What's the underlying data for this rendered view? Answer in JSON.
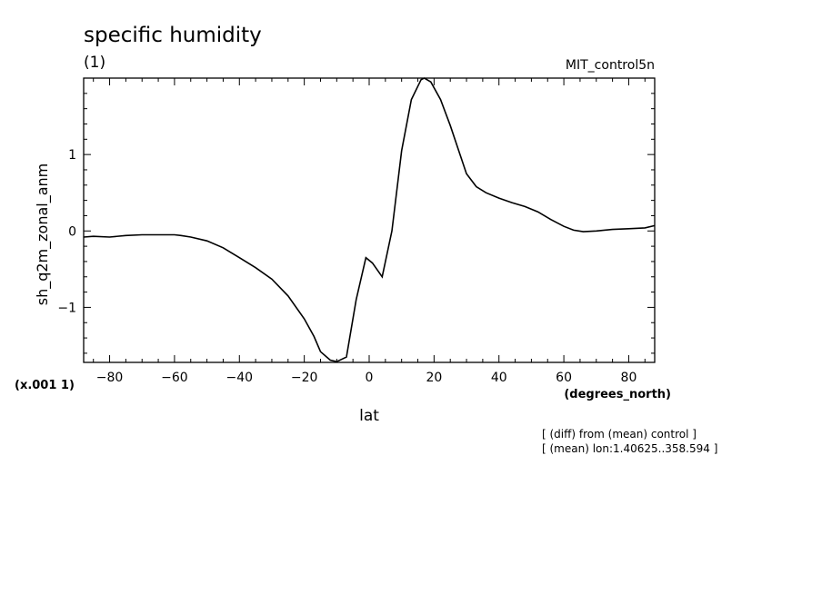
{
  "header": {
    "title": "specific humidity",
    "subtitle": "(1)",
    "run_label": "MIT_control5n"
  },
  "footer": {
    "scale_note": "(x.001 1)",
    "x_units": "(degrees_north)",
    "note_line1": "[ (diff) from (mean) control ]",
    "note_line2": "[ (mean) lon:1.40625..358.594 ]"
  },
  "chart_data": {
    "type": "line",
    "title": "specific humidity",
    "xlabel": "lat",
    "ylabel": "sh_q2m_zonal_anm",
    "xlim": [
      -88,
      88
    ],
    "ylim": [
      -1.72,
      2.0
    ],
    "xticks": [
      -80,
      -60,
      -40,
      -20,
      0,
      20,
      40,
      60,
      80
    ],
    "yticks": [
      -1,
      0,
      1
    ],
    "grid": false,
    "series": [
      {
        "x": [
          -88,
          -85,
          -80,
          -75,
          -70,
          -65,
          -60,
          -58,
          -55,
          -50,
          -45,
          -40,
          -35,
          -30,
          -25,
          -20,
          -17,
          -15,
          -12,
          -10,
          -7,
          -4,
          -1,
          1,
          4,
          7,
          10,
          13,
          16,
          17,
          19,
          22,
          25,
          28,
          30,
          33,
          36,
          40,
          44,
          48,
          52,
          56,
          60,
          63,
          66,
          70,
          75,
          80,
          85,
          88
        ],
        "y": [
          -0.08,
          -0.07,
          -0.08,
          -0.06,
          -0.05,
          -0.05,
          -0.05,
          -0.06,
          -0.08,
          -0.13,
          -0.22,
          -0.35,
          -0.48,
          -0.63,
          -0.85,
          -1.15,
          -1.38,
          -1.58,
          -1.69,
          -1.71,
          -1.65,
          -0.9,
          -0.35,
          -0.42,
          -0.6,
          0.0,
          1.05,
          1.72,
          1.98,
          2.0,
          1.95,
          1.72,
          1.38,
          1.0,
          0.75,
          0.58,
          0.5,
          0.43,
          0.37,
          0.32,
          0.25,
          0.15,
          0.06,
          0.01,
          -0.01,
          0.0,
          0.02,
          0.03,
          0.04,
          0.07
        ]
      }
    ]
  }
}
